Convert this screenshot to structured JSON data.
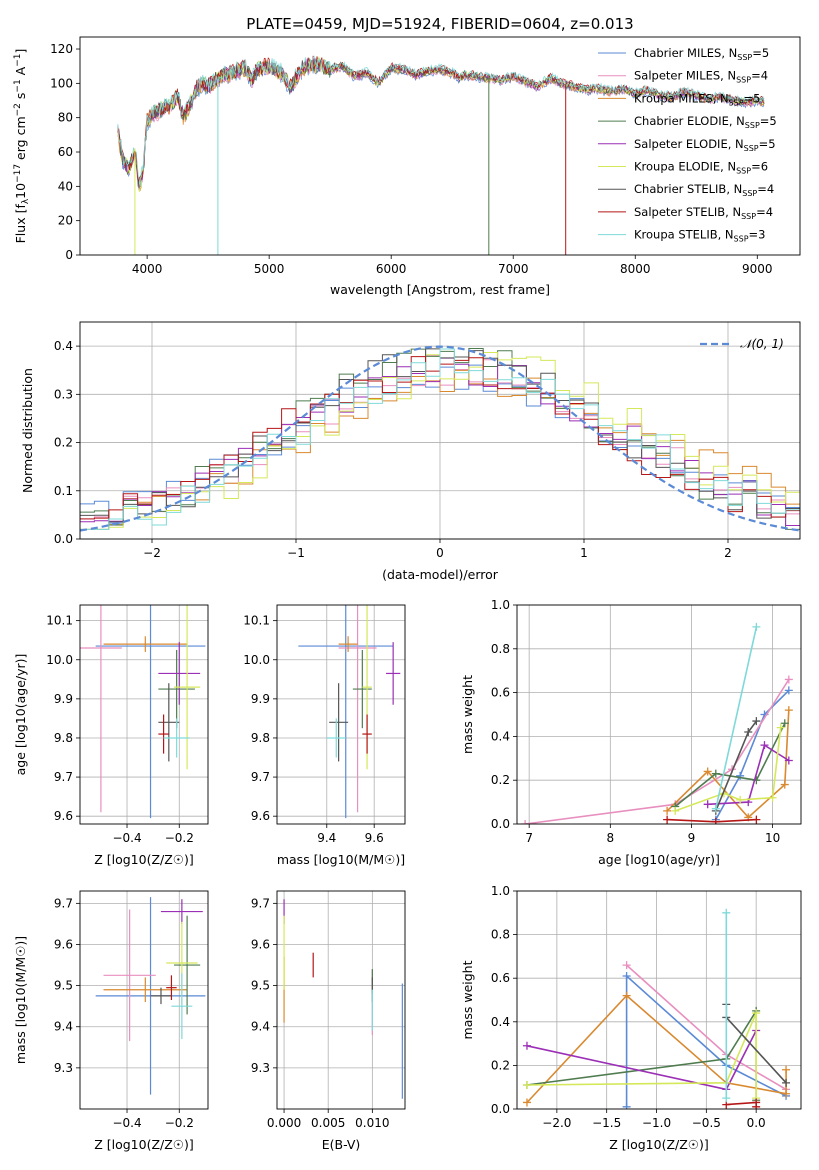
{
  "figure": {
    "title": "PLATE=0459, MJD=51924, FIBERID=0604, z=0.013"
  },
  "series_colors": [
    "#5b8ad6",
    "#e88fbf",
    "#d9892f",
    "#4f7c4f",
    "#9b2fb5",
    "#d5e85a",
    "#555555",
    "#b51616",
    "#7fd9d9"
  ],
  "chart_data": [
    {
      "id": "spectrum",
      "type": "line",
      "title": "PLATE=0459, MJD=51924, FIBERID=0604, z=0.013",
      "xlabel": "wavelength [Angstrom, rest frame]",
      "ylabel": "Flux [f_λ 10^-17 erg cm^-2 s^-1 A^-1]",
      "xlim": [
        3450,
        9350
      ],
      "ylim": [
        0,
        127
      ],
      "xticks": [
        4000,
        5000,
        6000,
        7000,
        8000,
        9000
      ],
      "yticks": [
        0,
        20,
        40,
        60,
        80,
        100,
        120
      ],
      "grid": false,
      "legend_position": "top-right",
      "legend": [
        {
          "label": "Chabrier MILES, N",
          "sub": "SSP",
          "tail": "=5"
        },
        {
          "label": "Salpeter MILES, N",
          "sub": "SSP",
          "tail": "=4"
        },
        {
          "label": "Kroupa MILES, N",
          "sub": "SSP",
          "tail": "=5"
        },
        {
          "label": "Chabrier ELODIE, N",
          "sub": "SSP",
          "tail": "=5"
        },
        {
          "label": "Salpeter ELODIE, N",
          "sub": "SSP",
          "tail": "=5"
        },
        {
          "label": "Kroupa ELODIE, N",
          "sub": "SSP",
          "tail": "=6"
        },
        {
          "label": "Chabrier STELIB, N",
          "sub": "SSP",
          "tail": "=4"
        },
        {
          "label": "Salpeter STELIB, N",
          "sub": "SSP",
          "tail": "=4"
        },
        {
          "label": "Kroupa STELIB, N",
          "sub": "SSP",
          "tail": "=3"
        }
      ],
      "x": [
        3760,
        3800,
        3850,
        3900,
        3933,
        3968,
        4000,
        4050,
        4101,
        4150,
        4200,
        4250,
        4300,
        4340,
        4400,
        4450,
        4500,
        4600,
        4700,
        4800,
        4861,
        4900,
        5000,
        5100,
        5175,
        5250,
        5300,
        5400,
        5500,
        5600,
        5700,
        5800,
        5893,
        6000,
        6100,
        6200,
        6300,
        6400,
        6500,
        6563,
        6600,
        6700,
        6800,
        6900,
        7000,
        7100,
        7200,
        7300,
        7400,
        7500,
        7600,
        7700,
        7800,
        7900,
        8000,
        8100,
        8200,
        8300,
        8400,
        8500,
        8600,
        8700,
        8800,
        8900,
        9000,
        9060
      ],
      "y": [
        72,
        55,
        50,
        62,
        40,
        48,
        78,
        82,
        84,
        86,
        88,
        93,
        80,
        86,
        96,
        100,
        98,
        104,
        106,
        109,
        102,
        108,
        110,
        106,
        98,
        107,
        110,
        111,
        108,
        110,
        104,
        106,
        100,
        109,
        108,
        105,
        107,
        108,
        106,
        103,
        105,
        104,
        103,
        102,
        104,
        101,
        98,
        103,
        100,
        98,
        96,
        97,
        95,
        97,
        94,
        96,
        93,
        92,
        95,
        93,
        91,
        92,
        90,
        89,
        90,
        89
      ]
    },
    {
      "id": "residuals",
      "type": "histogram",
      "xlabel": "(data-model)/error",
      "ylabel": "Normed distribution",
      "xlim": [
        -2.5,
        2.5
      ],
      "ylim": [
        0,
        0.45
      ],
      "xticks": [
        -2,
        -1,
        0,
        1,
        2
      ],
      "yticks": [
        0.0,
        0.1,
        0.2,
        0.3,
        0.4
      ],
      "grid": true,
      "legend_position": "top-right",
      "legend": [
        {
          "label": "𝒩(0, 1)",
          "style": "dashed"
        }
      ],
      "bin_width": 0.1
    },
    {
      "id": "age_vs_Z",
      "type": "errorbar",
      "xlabel": "Z [log10(Z/Z☉)]",
      "ylabel": "age [log10(age/yr)]",
      "xlim": [
        -0.58,
        -0.09
      ],
      "ylim": [
        9.58,
        10.14
      ],
      "xticks": [
        -0.4,
        -0.2
      ],
      "yticks": [
        9.6,
        9.7,
        9.8,
        9.9,
        10.0,
        10.1
      ],
      "grid": true,
      "points": [
        {
          "x": -0.31,
          "y": 10.035,
          "xerr": 0.21,
          "yerr": 0.44
        },
        {
          "x": -0.5,
          "y": 10.03,
          "xerr": 0.08,
          "yerr": 0.42
        },
        {
          "x": -0.33,
          "y": 10.04,
          "xerr": 0.16,
          "yerr": 0.02
        },
        {
          "x": -0.21,
          "y": 9.925,
          "xerr": 0.07,
          "yerr": 0.1
        },
        {
          "x": -0.2,
          "y": 9.965,
          "xerr": 0.08,
          "yerr": 0.08
        },
        {
          "x": -0.17,
          "y": 9.93,
          "xerr": 0.05,
          "yerr": 0.21
        },
        {
          "x": -0.24,
          "y": 9.84,
          "xerr": 0.04,
          "yerr": 0.1
        },
        {
          "x": -0.26,
          "y": 9.81,
          "xerr": 0.02,
          "yerr": 0.05
        },
        {
          "x": -0.21,
          "y": 9.8,
          "xerr": 0.05,
          "yerr": 0.05
        }
      ]
    },
    {
      "id": "age_vs_mass",
      "type": "errorbar",
      "xlabel": "mass [log10(M/M☉)]",
      "ylabel": "",
      "xlim": [
        9.19,
        9.73
      ],
      "ylim": [
        9.58,
        10.14
      ],
      "xticks": [
        9.4,
        9.6
      ],
      "yticks": [
        9.6,
        9.7,
        9.8,
        9.9,
        10.0,
        10.1
      ],
      "grid": true,
      "points": [
        {
          "x": 9.48,
          "y": 10.035,
          "xerr": 0.2,
          "yerr": 0.44
        },
        {
          "x": 9.53,
          "y": 10.03,
          "xerr": 0.08,
          "yerr": 0.42
        },
        {
          "x": 9.49,
          "y": 10.04,
          "xerr": 0.04,
          "yerr": 0.02
        },
        {
          "x": 9.55,
          "y": 9.925,
          "xerr": 0.04,
          "yerr": 0.1
        },
        {
          "x": 9.68,
          "y": 9.965,
          "xerr": 0.03,
          "yerr": 0.08
        },
        {
          "x": 9.57,
          "y": 9.93,
          "xerr": 0.02,
          "yerr": 0.21
        },
        {
          "x": 9.45,
          "y": 9.84,
          "xerr": 0.04,
          "yerr": 0.1
        },
        {
          "x": 9.57,
          "y": 9.81,
          "xerr": 0.02,
          "yerr": 0.05
        },
        {
          "x": 9.44,
          "y": 9.8,
          "xerr": 0.04,
          "yerr": 0.05
        }
      ]
    },
    {
      "id": "massweight_vs_age",
      "type": "line",
      "xlabel": "age [log10(age/yr)]",
      "ylabel": "mass weight",
      "xlim": [
        6.85,
        10.35
      ],
      "ylim": [
        0,
        1.0
      ],
      "xticks": [
        7,
        8,
        9,
        10
      ],
      "yticks": [
        0.0,
        0.2,
        0.4,
        0.6,
        0.8,
        1.0
      ],
      "grid": true,
      "series": [
        {
          "x": [
            9.3,
            9.6,
            9.9,
            10.2
          ],
          "y": [
            0.02,
            0.22,
            0.5,
            0.61
          ]
        },
        {
          "x": [
            6.95,
            8.8,
            9.5,
            10.2
          ],
          "y": [
            0.0,
            0.09,
            0.25,
            0.66
          ]
        },
        {
          "x": [
            8.7,
            9.2,
            9.7,
            10.15,
            10.2
          ],
          "y": [
            0.06,
            0.24,
            0.03,
            0.18,
            0.52
          ]
        },
        {
          "x": [
            8.8,
            9.3,
            9.8,
            10.15
          ],
          "y": [
            0.08,
            0.23,
            0.2,
            0.46
          ]
        },
        {
          "x": [
            9.2,
            9.7,
            9.9,
            10.2
          ],
          "y": [
            0.09,
            0.1,
            0.36,
            0.29
          ]
        },
        {
          "x": [
            8.8,
            9.4,
            9.6,
            10.0,
            10.1
          ],
          "y": [
            0.06,
            0.14,
            0.11,
            0.12,
            0.44
          ]
        },
        {
          "x": [
            9.3,
            9.7,
            9.8
          ],
          "y": [
            0.06,
            0.42,
            0.47
          ]
        },
        {
          "x": [
            8.7,
            9.3,
            9.8
          ],
          "y": [
            0.02,
            0.01,
            0.02
          ]
        },
        {
          "x": [
            9.3,
            9.8
          ],
          "y": [
            0.07,
            0.9
          ]
        }
      ]
    },
    {
      "id": "mass_vs_Z",
      "type": "errorbar",
      "xlabel": "Z [log10(Z/Z☉)]",
      "ylabel": "mass [log10(M/M☉)]",
      "xlim": [
        -0.58,
        -0.09
      ],
      "ylim": [
        9.2,
        9.73
      ],
      "xticks": [
        -0.4,
        -0.2
      ],
      "yticks": [
        9.3,
        9.4,
        9.5,
        9.6,
        9.7
      ],
      "grid": true,
      "points": [
        {
          "x": -0.31,
          "y": 9.475,
          "xerr": 0.21,
          "yerr": 0.24
        },
        {
          "x": -0.39,
          "y": 9.525,
          "xerr": 0.1,
          "yerr": 0.16
        },
        {
          "x": -0.33,
          "y": 9.49,
          "xerr": 0.16,
          "yerr": 0.03
        },
        {
          "x": -0.17,
          "y": 9.55,
          "xerr": 0.05,
          "yerr": 0.12
        },
        {
          "x": -0.19,
          "y": 9.68,
          "xerr": 0.08,
          "yerr": 0.03
        },
        {
          "x": -0.19,
          "y": 9.555,
          "xerr": 0.06,
          "yerr": 0.1
        },
        {
          "x": -0.27,
          "y": 9.475,
          "xerr": 0.04,
          "yerr": 0.02
        },
        {
          "x": -0.23,
          "y": 9.495,
          "xerr": 0.02,
          "yerr": 0.03
        },
        {
          "x": -0.19,
          "y": 9.45,
          "xerr": 0.04,
          "yerr": 0.08
        }
      ]
    },
    {
      "id": "mass_vs_ebv",
      "type": "errorbar",
      "xlabel": "E(B-V)",
      "ylabel": "",
      "xlim": [
        -0.0008,
        0.0137
      ],
      "ylim": [
        9.2,
        9.73
      ],
      "xticks": [
        0.0,
        0.005,
        0.01
      ],
      "xticklabels": [
        "0.000",
        "0.005",
        "0.010"
      ],
      "yticks": [
        9.3,
        9.4,
        9.5,
        9.6,
        9.7
      ],
      "grid": true,
      "points": [
        {
          "x": 0.0134,
          "y": 9.365,
          "xerr": 0,
          "yerr": 0.14
        },
        {
          "x": 0.01,
          "y": 9.46,
          "xerr": 0,
          "yerr": 0.08
        },
        {
          "x": 0.0,
          "y": 9.49,
          "xerr": 0,
          "yerr": 0.08
        },
        {
          "x": 0.01,
          "y": 9.5,
          "xerr": 0,
          "yerr": 0.04
        },
        {
          "x": 0.0,
          "y": 9.68,
          "xerr": 0,
          "yerr": 0.03
        },
        {
          "x": 0.0,
          "y": 9.58,
          "xerr": 0,
          "yerr": 0.09
        },
        {
          "x": 0.01,
          "y": 9.5,
          "xerr": 0,
          "yerr": 0.02
        },
        {
          "x": 0.0033,
          "y": 9.55,
          "xerr": 0,
          "yerr": 0.03
        },
        {
          "x": 0.01,
          "y": 9.44,
          "xerr": 0,
          "yerr": 0.05
        }
      ]
    },
    {
      "id": "massweight_vs_Z",
      "type": "line",
      "xlabel": "Z [log10(Z/Z☉)]",
      "ylabel": "mass weight",
      "xlim": [
        -2.4,
        0.45
      ],
      "ylim": [
        0,
        1.0
      ],
      "xticks": [
        -2.0,
        -1.5,
        -1.0,
        -0.5,
        0.0
      ],
      "yticks": [
        0.0,
        0.2,
        0.4,
        0.6,
        0.8,
        1.0
      ],
      "grid": true,
      "series": [
        {
          "x": [
            -1.3,
            -1.3,
            -0.3,
            0.3
          ],
          "y": [
            0.01,
            0.61,
            0.2,
            0.06
          ]
        },
        {
          "x": [
            -1.3,
            -0.3,
            0.3
          ],
          "y": [
            0.66,
            0.25,
            0.09
          ]
        },
        {
          "x": [
            -2.3,
            -1.3,
            -0.3,
            0.3,
            0.3
          ],
          "y": [
            0.03,
            0.52,
            0.12,
            0.07,
            0.18
          ]
        },
        {
          "x": [
            -2.3,
            -0.3,
            0.0,
            0.0
          ],
          "y": [
            0.11,
            0.23,
            0.45,
            0.04
          ]
        },
        {
          "x": [
            -2.3,
            -0.3,
            0.0
          ],
          "y": [
            0.29,
            0.09,
            0.36
          ]
        },
        {
          "x": [
            -2.3,
            -0.3,
            0.0,
            0.0
          ],
          "y": [
            0.11,
            0.12,
            0.44,
            0.05
          ]
        },
        {
          "x": [
            -0.3,
            -0.3,
            0.3
          ],
          "y": [
            0.48,
            0.42,
            0.12
          ]
        },
        {
          "x": [
            -0.3,
            0.0,
            0.0
          ],
          "y": [
            0.02,
            0.03,
            0.01
          ]
        },
        {
          "x": [
            -0.3,
            -0.3
          ],
          "y": [
            0.05,
            0.9
          ]
        }
      ]
    }
  ]
}
